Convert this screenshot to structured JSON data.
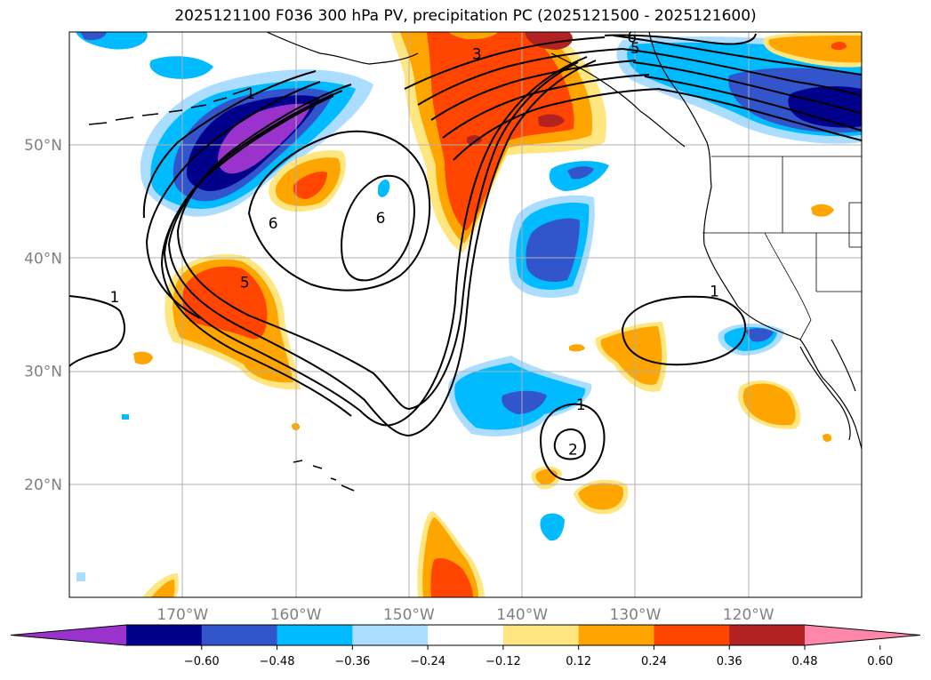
{
  "title": "2025121100 F036 300 hPa PV, precipitation PC (2025121500 - 2025121600)",
  "map": {
    "projection": "equirectangular",
    "lon_range": [
      -180,
      -110
    ],
    "lat_range": [
      10,
      60
    ],
    "lat_gridlines": [
      {
        "value": 50,
        "label": "50°N"
      },
      {
        "value": 40,
        "label": "40°N"
      },
      {
        "value": 30,
        "label": "30°N"
      },
      {
        "value": 20,
        "label": "20°N"
      }
    ],
    "lon_gridlines": [
      {
        "value": -170,
        "label": "170°W"
      },
      {
        "value": -160,
        "label": "160°W"
      },
      {
        "value": -150,
        "label": "150°W"
      },
      {
        "value": -140,
        "label": "140°W"
      },
      {
        "value": -130,
        "label": "130°W"
      },
      {
        "value": -120,
        "label": "120°W"
      }
    ],
    "pv_contour_labels": [
      {
        "text": "1",
        "lon": -176,
        "lat": 36.5
      },
      {
        "text": "1",
        "lon": -164,
        "lat": 54.5
      },
      {
        "text": "1",
        "lon": -123,
        "lat": 37
      },
      {
        "text": "1",
        "lon": -134.8,
        "lat": 27
      },
      {
        "text": "2",
        "lon": -135.5,
        "lat": 23
      },
      {
        "text": "3",
        "lon": -144,
        "lat": 58
      },
      {
        "text": "5",
        "lon": -164.5,
        "lat": 37.8
      },
      {
        "text": "5",
        "lon": -130,
        "lat": 58.5
      },
      {
        "text": "6",
        "lon": -162,
        "lat": 43
      },
      {
        "text": "6",
        "lon": -152.5,
        "lat": 43.5
      },
      {
        "text": "6",
        "lon": -130.3,
        "lat": 59.5
      }
    ]
  },
  "colorbar": {
    "colors": [
      "#9933cc",
      "#00008b",
      "#3355cc",
      "#00bbff",
      "#aaddff",
      "#ffffff",
      "#ffe680",
      "#ffa500",
      "#ff4500",
      "#b22222",
      "#ff88aa"
    ],
    "ticks": [
      "−0.60",
      "−0.48",
      "−0.36",
      "−0.24",
      "−0.12",
      "0.12",
      "0.24",
      "0.36",
      "0.48",
      "0.60"
    ],
    "tick_values": [
      -0.6,
      -0.48,
      -0.36,
      -0.24,
      -0.12,
      0.12,
      0.24,
      0.36,
      0.48,
      0.6
    ],
    "extend": "both"
  }
}
